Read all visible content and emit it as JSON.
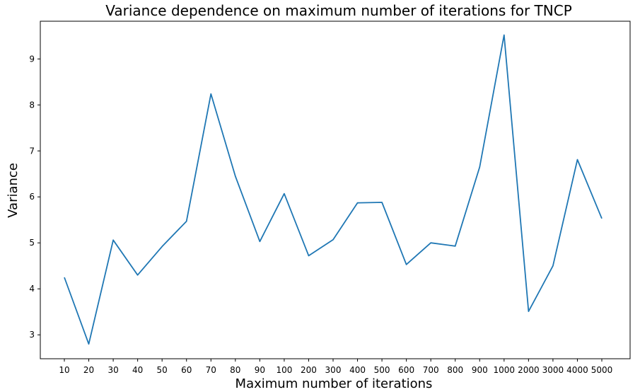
{
  "chart_data": {
    "type": "line",
    "title": "Variance dependence on maximum number of iterations for TNCP",
    "xlabel": "Maximum number of iterations",
    "ylabel": "Variance",
    "categories": [
      "10",
      "20",
      "30",
      "40",
      "50",
      "60",
      "70",
      "80",
      "90",
      "100",
      "200",
      "300",
      "400",
      "500",
      "600",
      "700",
      "800",
      "900",
      "1000",
      "2000",
      "3000",
      "4000",
      "5000"
    ],
    "yticks": [
      "3",
      "4",
      "5",
      "6",
      "7",
      "8",
      "9"
    ],
    "ylim": [
      2.48,
      9.82
    ],
    "series": [
      {
        "values": [
          4.25,
          2.8,
          5.06,
          4.3,
          4.92,
          5.47,
          8.24,
          6.45,
          5.03,
          6.07,
          4.72,
          5.07,
          5.87,
          5.88,
          4.53,
          5.0,
          4.93,
          6.65,
          9.52,
          3.51,
          4.5,
          6.81,
          5.53
        ],
        "color": "#1f77b4"
      }
    ],
    "grid": false,
    "legend": "none"
  }
}
